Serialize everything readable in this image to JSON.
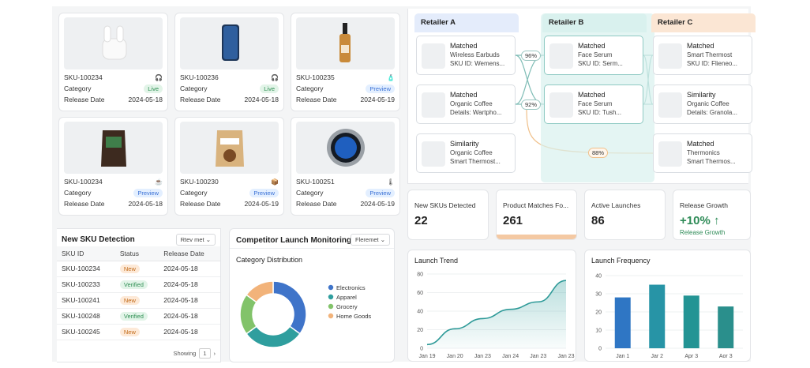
{
  "products": [
    {
      "sku": "SKU-100234",
      "category": "Category",
      "category_value": "Live",
      "release": "Release Date",
      "date": "2024-05-18",
      "icon": "headphones-icon",
      "icon_char": "🎧",
      "status": "live"
    },
    {
      "sku": "SKU-100236",
      "category": "Category",
      "category_value": "Live",
      "release": "Release Date",
      "date": "2024-05-18",
      "icon": "headphones-icon",
      "icon_char": "🎧",
      "status": "live"
    },
    {
      "sku": "SKU-100235",
      "category": "Category",
      "category_value": "Preview",
      "release": "Release Date",
      "date": "2024-05-19",
      "icon": "bottle-icon",
      "icon_char": "🧴",
      "status": "preview"
    },
    {
      "sku": "SKU-100234",
      "category": "Category",
      "category_value": "Preview",
      "release": "Release Date",
      "date": "2024-05-18",
      "icon": "coffee-icon",
      "icon_char": "☕",
      "status": "preview"
    },
    {
      "sku": "SKU-100230",
      "category": "Category",
      "category_value": "Preview",
      "release": "Release Date",
      "date": "2024-05-19",
      "icon": "box-icon",
      "icon_char": "📦",
      "status": "preview"
    },
    {
      "sku": "SKU-100251",
      "category": "Category",
      "category_value": "Preview",
      "release": "Release Date",
      "date": "2024-05-19",
      "icon": "thermometer-icon",
      "icon_char": "🌡",
      "status": "preview"
    }
  ],
  "sku_detection": {
    "title": "New SKU Detection",
    "filter": "Rtev met",
    "headers": [
      "SKU ID",
      "Status",
      "Release Date"
    ],
    "rows": [
      {
        "id": "SKU-100234",
        "status": "New",
        "date": "2024-05-18"
      },
      {
        "id": "SKU-100233",
        "status": "Verified",
        "date": "2024-05-18"
      },
      {
        "id": "SKU-100241",
        "status": "New",
        "date": "2024-05-18"
      },
      {
        "id": "SKU-100248",
        "status": "Verified",
        "date": "2024-05-18"
      },
      {
        "id": "SKU-100245",
        "status": "New",
        "date": "2024-05-18"
      }
    ],
    "showing": "Showing",
    "page": "1"
  },
  "launch_monitoring": {
    "title": "Competitor Launch Monitoring",
    "filter": "Fleremet",
    "subtitle": "Category Distribution"
  },
  "matching": {
    "columns": [
      "Retailer A",
      "Retailer B",
      "Retailer C"
    ],
    "colors": {
      "a": "#e4ecfb",
      "b": "#d9f1ee",
      "c": "#fbe6d4"
    },
    "a": [
      {
        "t1": "Matched",
        "t2": "Wireless Earbuds",
        "t3": "SKU ID: Wemens..."
      },
      {
        "t1": "Matched",
        "t2": "Organic Coffee",
        "t3": "Details: Wartpho..."
      },
      {
        "t1": "Similarity",
        "t2": "Organic Coffee",
        "t3": "Smart Thermost..."
      }
    ],
    "b": [
      {
        "t1": "Matched",
        "t2": "Face Serum",
        "t3": "SKU ID: Serm..."
      },
      {
        "t1": "Matched",
        "t2": "Face Serum",
        "t3": "SKU ID: Tush..."
      }
    ],
    "c": [
      {
        "t1": "Matched",
        "t2": "Smart Thermost",
        "t3": "SKU ID: Flieneo..."
      },
      {
        "t1": "Similarity",
        "t2": "Organic Coffee",
        "t3": "Details: Granola..."
      },
      {
        "t1": "Matched",
        "t2": "Thermonics",
        "t3": "Smart Thermos..."
      }
    ],
    "badges": [
      "96%",
      "92%",
      "88%"
    ]
  },
  "kpis": [
    {
      "label": "New SKUs Detected",
      "value": "22"
    },
    {
      "label": "Product Matches Fo...",
      "value": "261"
    },
    {
      "label": "Active Launches",
      "value": "86"
    },
    {
      "label": "Release Growth",
      "value": "+10% ↑",
      "sub": "Release Growth"
    }
  ],
  "chart_data": [
    {
      "type": "pie",
      "title": "Category Distribution",
      "categories": [
        "Electronics",
        "Apparel",
        "Grocery",
        "Home Goods"
      ],
      "values": [
        35,
        30,
        20,
        15
      ],
      "colors": [
        "#3f74c9",
        "#2f9e9e",
        "#82c36a",
        "#f2b37a"
      ]
    },
    {
      "type": "area",
      "title": "Launch Trend",
      "categories": [
        "Jan 19",
        "Jan 20",
        "Jan 23",
        "Jan 24",
        "Jan 23",
        "Jan 23"
      ],
      "x": [
        0,
        1,
        2,
        3,
        4,
        5
      ],
      "values": [
        4,
        21,
        32,
        42,
        50,
        73
      ],
      "yticks": [
        0,
        20,
        40,
        60,
        80
      ],
      "ylim": [
        0,
        80
      ]
    },
    {
      "type": "bar",
      "title": "Launch Frequency",
      "categories": [
        "Jan 1",
        "Jar 2",
        "Apr 3",
        "Aor 3"
      ],
      "values": [
        28,
        35,
        29,
        23
      ],
      "yticks": [
        0,
        10,
        20,
        30,
        40
      ],
      "ylim": [
        0,
        40
      ],
      "colors": [
        "#2f76c4",
        "#2794a6",
        "#239494",
        "#2a8f8c"
      ]
    }
  ]
}
